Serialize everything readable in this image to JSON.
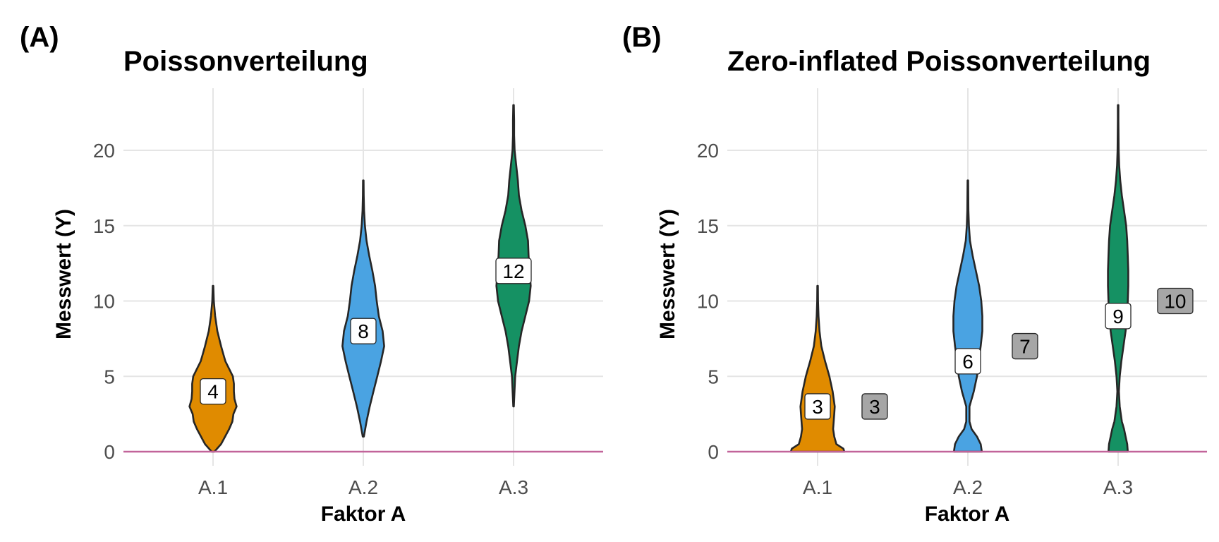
{
  "chart_data": [
    {
      "panel_label": "(A)",
      "type": "violin",
      "title": "Poissonverteilung",
      "xlabel": "Faktor A",
      "ylabel": "Messwert (Y)",
      "categories": [
        "A.1",
        "A.2",
        "A.3"
      ],
      "ylim": [
        -1,
        24
      ],
      "yticks": [
        0,
        5,
        10,
        15,
        20
      ],
      "grid": true,
      "reference_line": {
        "y": 0,
        "color": "#c2649a"
      },
      "colors": [
        "#e08b00",
        "#4aa3e2",
        "#159163"
      ],
      "violins": [
        {
          "category": "A.1",
          "min": 0,
          "max": 11,
          "profile": [
            [
              0,
              0.05
            ],
            [
              0.5,
              0.3
            ],
            [
              1.5,
              0.6
            ],
            [
              2,
              0.72
            ],
            [
              2.5,
              0.76
            ],
            [
              3,
              0.88
            ],
            [
              3.5,
              0.8
            ],
            [
              4,
              0.78
            ],
            [
              4.5,
              0.78
            ],
            [
              5,
              0.74
            ],
            [
              5.5,
              0.6
            ],
            [
              6,
              0.46
            ],
            [
              6.5,
              0.38
            ],
            [
              7,
              0.3
            ],
            [
              8,
              0.16
            ],
            [
              9,
              0.08
            ],
            [
              10,
              0.03
            ],
            [
              11,
              0.01
            ]
          ]
        },
        {
          "category": "A.2",
          "min": 1,
          "max": 18,
          "profile": [
            [
              1,
              0.02
            ],
            [
              2,
              0.12
            ],
            [
              3,
              0.24
            ],
            [
              4,
              0.38
            ],
            [
              5,
              0.52
            ],
            [
              6,
              0.66
            ],
            [
              7,
              0.78
            ],
            [
              8,
              0.72
            ],
            [
              9,
              0.58
            ],
            [
              10,
              0.5
            ],
            [
              11,
              0.44
            ],
            [
              12,
              0.34
            ],
            [
              13,
              0.22
            ],
            [
              14,
              0.12
            ],
            [
              15,
              0.06
            ],
            [
              16,
              0.03
            ],
            [
              17,
              0.015
            ],
            [
              18,
              0.01
            ]
          ]
        },
        {
          "category": "A.3",
          "min": 3,
          "max": 23,
          "profile": [
            [
              3,
              0.01
            ],
            [
              5,
              0.06
            ],
            [
              6,
              0.13
            ],
            [
              7,
              0.2
            ],
            [
              8,
              0.3
            ],
            [
              9,
              0.44
            ],
            [
              10,
              0.58
            ],
            [
              11,
              0.64
            ],
            [
              12,
              0.6
            ],
            [
              13,
              0.56
            ],
            [
              14,
              0.54
            ],
            [
              15,
              0.44
            ],
            [
              16,
              0.3
            ],
            [
              17,
              0.2
            ],
            [
              18,
              0.16
            ],
            [
              19,
              0.1
            ],
            [
              20,
              0.04
            ],
            [
              21,
              0.02
            ],
            [
              22,
              0.02
            ],
            [
              23,
              0.01
            ]
          ]
        }
      ],
      "labels": [
        {
          "category": "A.1",
          "y": 4,
          "text": "4",
          "fill": "#ffffff",
          "offset": 0
        },
        {
          "category": "A.2",
          "y": 8,
          "text": "8",
          "fill": "#ffffff",
          "offset": 0
        },
        {
          "category": "A.3",
          "y": 12,
          "text": "12",
          "fill": "#ffffff",
          "offset": 0
        }
      ]
    },
    {
      "panel_label": "(B)",
      "type": "violin",
      "title": "Zero-inflated Poissonverteilung",
      "xlabel": "Faktor A",
      "ylabel": "Messwert (Y)",
      "categories": [
        "A.1",
        "A.2",
        "A.3"
      ],
      "ylim": [
        -1,
        24
      ],
      "yticks": [
        0,
        5,
        10,
        15,
        20
      ],
      "grid": true,
      "reference_line": {
        "y": 0,
        "color": "#c2649a"
      },
      "colors": [
        "#e08b00",
        "#4aa3e2",
        "#159163"
      ],
      "violins": [
        {
          "category": "A.1",
          "min": 0,
          "max": 11,
          "profile": [
            [
              0,
              1
            ],
            [
              0.2,
              0.96
            ],
            [
              0.5,
              0.7
            ],
            [
              1,
              0.62
            ],
            [
              1.5,
              0.58
            ],
            [
              2,
              0.6
            ],
            [
              2.5,
              0.62
            ],
            [
              3,
              0.64
            ],
            [
              3.5,
              0.6
            ],
            [
              4,
              0.56
            ],
            [
              4.5,
              0.5
            ],
            [
              5,
              0.44
            ],
            [
              5.5,
              0.36
            ],
            [
              6,
              0.28
            ],
            [
              7,
              0.14
            ],
            [
              8,
              0.07
            ],
            [
              9,
              0.035
            ],
            [
              10,
              0.015
            ],
            [
              11,
              0.01
            ]
          ]
        },
        {
          "category": "A.2",
          "min": 0,
          "max": 18,
          "profile": [
            [
              0,
              0.52
            ],
            [
              0.5,
              0.48
            ],
            [
              1,
              0.34
            ],
            [
              1.5,
              0.14
            ],
            [
              2,
              0.06
            ],
            [
              3,
              0.06
            ],
            [
              4,
              0.22
            ],
            [
              5,
              0.34
            ],
            [
              6,
              0.4
            ],
            [
              7,
              0.48
            ],
            [
              8,
              0.54
            ],
            [
              9,
              0.54
            ],
            [
              10,
              0.5
            ],
            [
              11,
              0.42
            ],
            [
              12,
              0.3
            ],
            [
              13,
              0.18
            ],
            [
              14,
              0.08
            ],
            [
              15,
              0.04
            ],
            [
              16,
              0.02
            ],
            [
              18,
              0.01
            ]
          ]
        },
        {
          "category": "A.3",
          "min": 0,
          "max": 23,
          "profile": [
            [
              0,
              0.36
            ],
            [
              0.5,
              0.34
            ],
            [
              1,
              0.28
            ],
            [
              1.5,
              0.22
            ],
            [
              2,
              0.14
            ],
            [
              3,
              0.06
            ],
            [
              4,
              0.03
            ],
            [
              5,
              0.06
            ],
            [
              6,
              0.12
            ],
            [
              7,
              0.2
            ],
            [
              8,
              0.28
            ],
            [
              9,
              0.34
            ],
            [
              10,
              0.36
            ],
            [
              11,
              0.38
            ],
            [
              12,
              0.38
            ],
            [
              13,
              0.36
            ],
            [
              14,
              0.34
            ],
            [
              15,
              0.3
            ],
            [
              16,
              0.22
            ],
            [
              17,
              0.14
            ],
            [
              18,
              0.08
            ],
            [
              19,
              0.04
            ],
            [
              20,
              0.02
            ],
            [
              22,
              0.01
            ],
            [
              23,
              0.01
            ]
          ]
        }
      ],
      "labels": [
        {
          "category": "A.1",
          "y": 3,
          "text": "3",
          "fill": "#ffffff",
          "offset": 0
        },
        {
          "category": "A.1",
          "y": 3,
          "text": "3",
          "fill": "#a6a6a6",
          "offset": 0.38
        },
        {
          "category": "A.2",
          "y": 6,
          "text": "6",
          "fill": "#ffffff",
          "offset": 0
        },
        {
          "category": "A.2",
          "y": 7,
          "text": "7",
          "fill": "#a6a6a6",
          "offset": 0.38
        },
        {
          "category": "A.3",
          "y": 9,
          "text": "9",
          "fill": "#ffffff",
          "offset": 0
        },
        {
          "category": "A.3",
          "y": 10,
          "text": "10",
          "fill": "#a6a6a6",
          "offset": 0.38
        }
      ]
    }
  ]
}
